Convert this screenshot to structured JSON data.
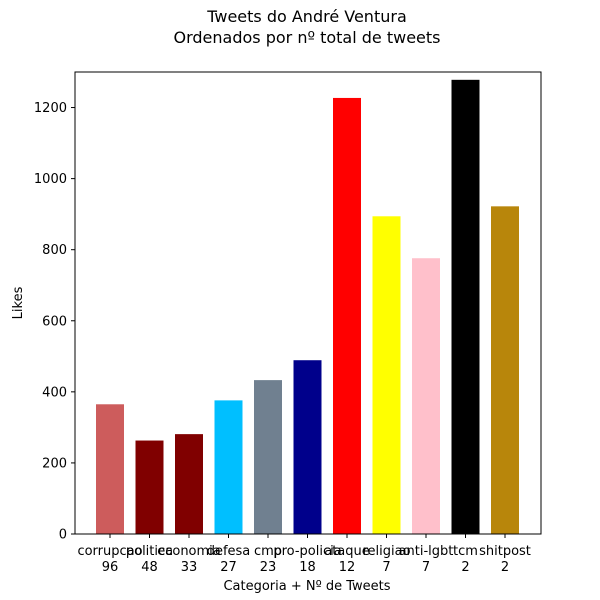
{
  "chart_data": {
    "type": "bar",
    "title": "Tweets do André Ventura",
    "subtitle": "Ordenados por nº total de tweets",
    "xlabel": "Categoria + Nº de Tweets",
    "ylabel": "Likes",
    "ylim": [
      0,
      1300
    ],
    "yticks": [
      0,
      200,
      400,
      600,
      800,
      1000,
      1200
    ],
    "grid": false,
    "categories": [
      "corrupcao",
      "politica",
      "economia",
      "defesa",
      "cmp",
      "pro-policia",
      "ataque",
      "religiao",
      "anti-lgbt",
      "tcm",
      "shitpost"
    ],
    "counts": [
      "96",
      "48",
      "33",
      "27",
      "23",
      "18",
      "12",
      "7",
      "7",
      "2",
      "2"
    ],
    "values": [
      365,
      263,
      281,
      376,
      433,
      489,
      1227,
      894,
      776,
      1278,
      922
    ],
    "colors": [
      "#cd5c5c",
      "#800000",
      "#800000",
      "#00bfff",
      "#708090",
      "#00008b",
      "#ff0000",
      "#ffff00",
      "#ffc0cb",
      "#000000",
      "#b8860b"
    ]
  }
}
